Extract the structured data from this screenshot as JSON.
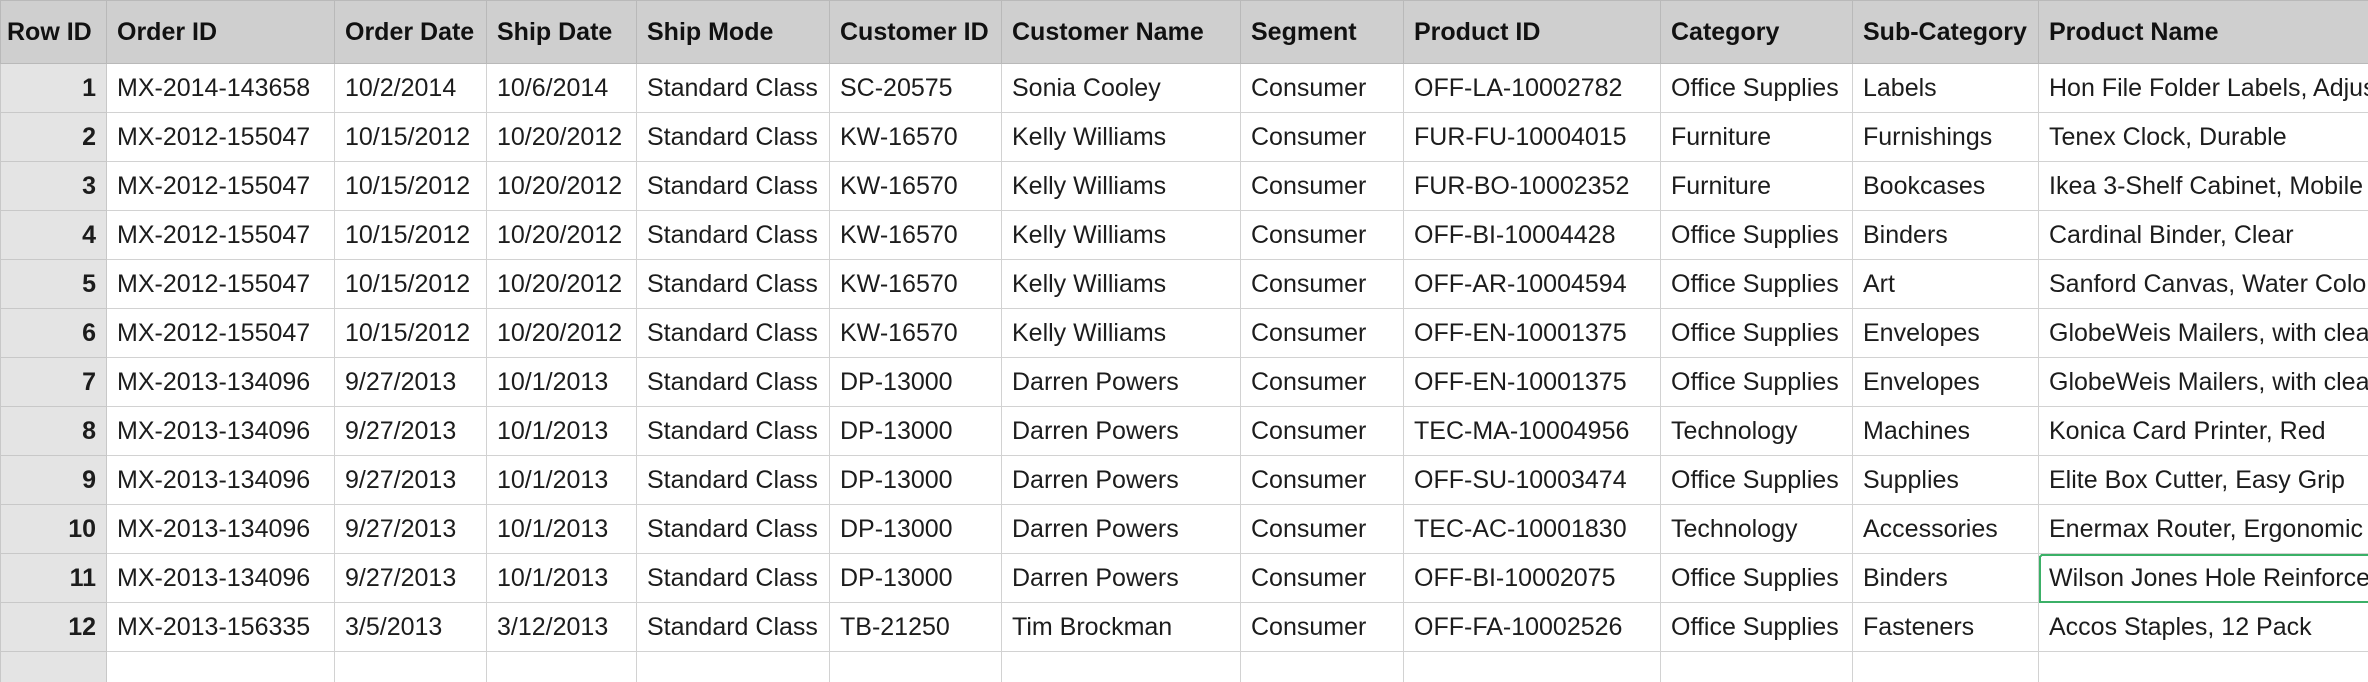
{
  "columns": [
    "Row ID",
    "Order ID",
    "Order Date",
    "Ship Date",
    "Ship Mode",
    "Customer ID",
    "Customer Name",
    "Segment",
    "Product ID",
    "Category",
    "Sub-Category",
    "Product Name"
  ],
  "rows": [
    [
      "1",
      "MX-2014-143658",
      "10/2/2014",
      "10/6/2014",
      "Standard Class",
      "SC-20575",
      "Sonia Cooley",
      "Consumer",
      "OFF-LA-10002782",
      "Office Supplies",
      "Labels",
      "Hon File Folder Labels, Adjus"
    ],
    [
      "2",
      "MX-2012-155047",
      "10/15/2012",
      "10/20/2012",
      "Standard Class",
      "KW-16570",
      "Kelly Williams",
      "Consumer",
      "FUR-FU-10004015",
      "Furniture",
      "Furnishings",
      "Tenex Clock, Durable"
    ],
    [
      "3",
      "MX-2012-155047",
      "10/15/2012",
      "10/20/2012",
      "Standard Class",
      "KW-16570",
      "Kelly Williams",
      "Consumer",
      "FUR-BO-10002352",
      "Furniture",
      "Bookcases",
      "Ikea 3-Shelf Cabinet, Mobile"
    ],
    [
      "4",
      "MX-2012-155047",
      "10/15/2012",
      "10/20/2012",
      "Standard Class",
      "KW-16570",
      "Kelly Williams",
      "Consumer",
      "OFF-BI-10004428",
      "Office Supplies",
      "Binders",
      "Cardinal Binder, Clear"
    ],
    [
      "5",
      "MX-2012-155047",
      "10/15/2012",
      "10/20/2012",
      "Standard Class",
      "KW-16570",
      "Kelly Williams",
      "Consumer",
      "OFF-AR-10004594",
      "Office Supplies",
      "Art",
      "Sanford Canvas, Water Colo"
    ],
    [
      "6",
      "MX-2012-155047",
      "10/15/2012",
      "10/20/2012",
      "Standard Class",
      "KW-16570",
      "Kelly Williams",
      "Consumer",
      "OFF-EN-10001375",
      "Office Supplies",
      "Envelopes",
      "GlobeWeis Mailers, with clea"
    ],
    [
      "7",
      "MX-2013-134096",
      "9/27/2013",
      "10/1/2013",
      "Standard Class",
      "DP-13000",
      "Darren Powers",
      "Consumer",
      "OFF-EN-10001375",
      "Office Supplies",
      "Envelopes",
      "GlobeWeis Mailers, with clea"
    ],
    [
      "8",
      "MX-2013-134096",
      "9/27/2013",
      "10/1/2013",
      "Standard Class",
      "DP-13000",
      "Darren Powers",
      "Consumer",
      "TEC-MA-10004956",
      "Technology",
      "Machines",
      "Konica Card Printer, Red"
    ],
    [
      "9",
      "MX-2013-134096",
      "9/27/2013",
      "10/1/2013",
      "Standard Class",
      "DP-13000",
      "Darren Powers",
      "Consumer",
      "OFF-SU-10003474",
      "Office Supplies",
      "Supplies",
      "Elite Box Cutter, Easy Grip"
    ],
    [
      "10",
      "MX-2013-134096",
      "9/27/2013",
      "10/1/2013",
      "Standard Class",
      "DP-13000",
      "Darren Powers",
      "Consumer",
      "TEC-AC-10001830",
      "Technology",
      "Accessories",
      "Enermax Router, Ergonomic"
    ],
    [
      "11",
      "MX-2013-134096",
      "9/27/2013",
      "10/1/2013",
      "Standard Class",
      "DP-13000",
      "Darren Powers",
      "Consumer",
      "OFF-BI-10002075",
      "Office Supplies",
      "Binders",
      "Wilson Jones Hole Reinforce"
    ],
    [
      "12",
      "MX-2013-156335",
      "3/5/2013",
      "3/12/2013",
      "Standard Class",
      "TB-21250",
      "Tim Brockman",
      "Consumer",
      "OFF-FA-10002526",
      "Office Supplies",
      "Fasteners",
      "Accos Staples, 12 Pack"
    ]
  ],
  "selected_cell": {
    "row": 11,
    "column": "Product Name"
  },
  "colors": {
    "header_bg": "#cfcfcf",
    "rowid_bg": "#e4e4e4",
    "gridline": "#d2d2d2",
    "selection": "#3bb067"
  }
}
